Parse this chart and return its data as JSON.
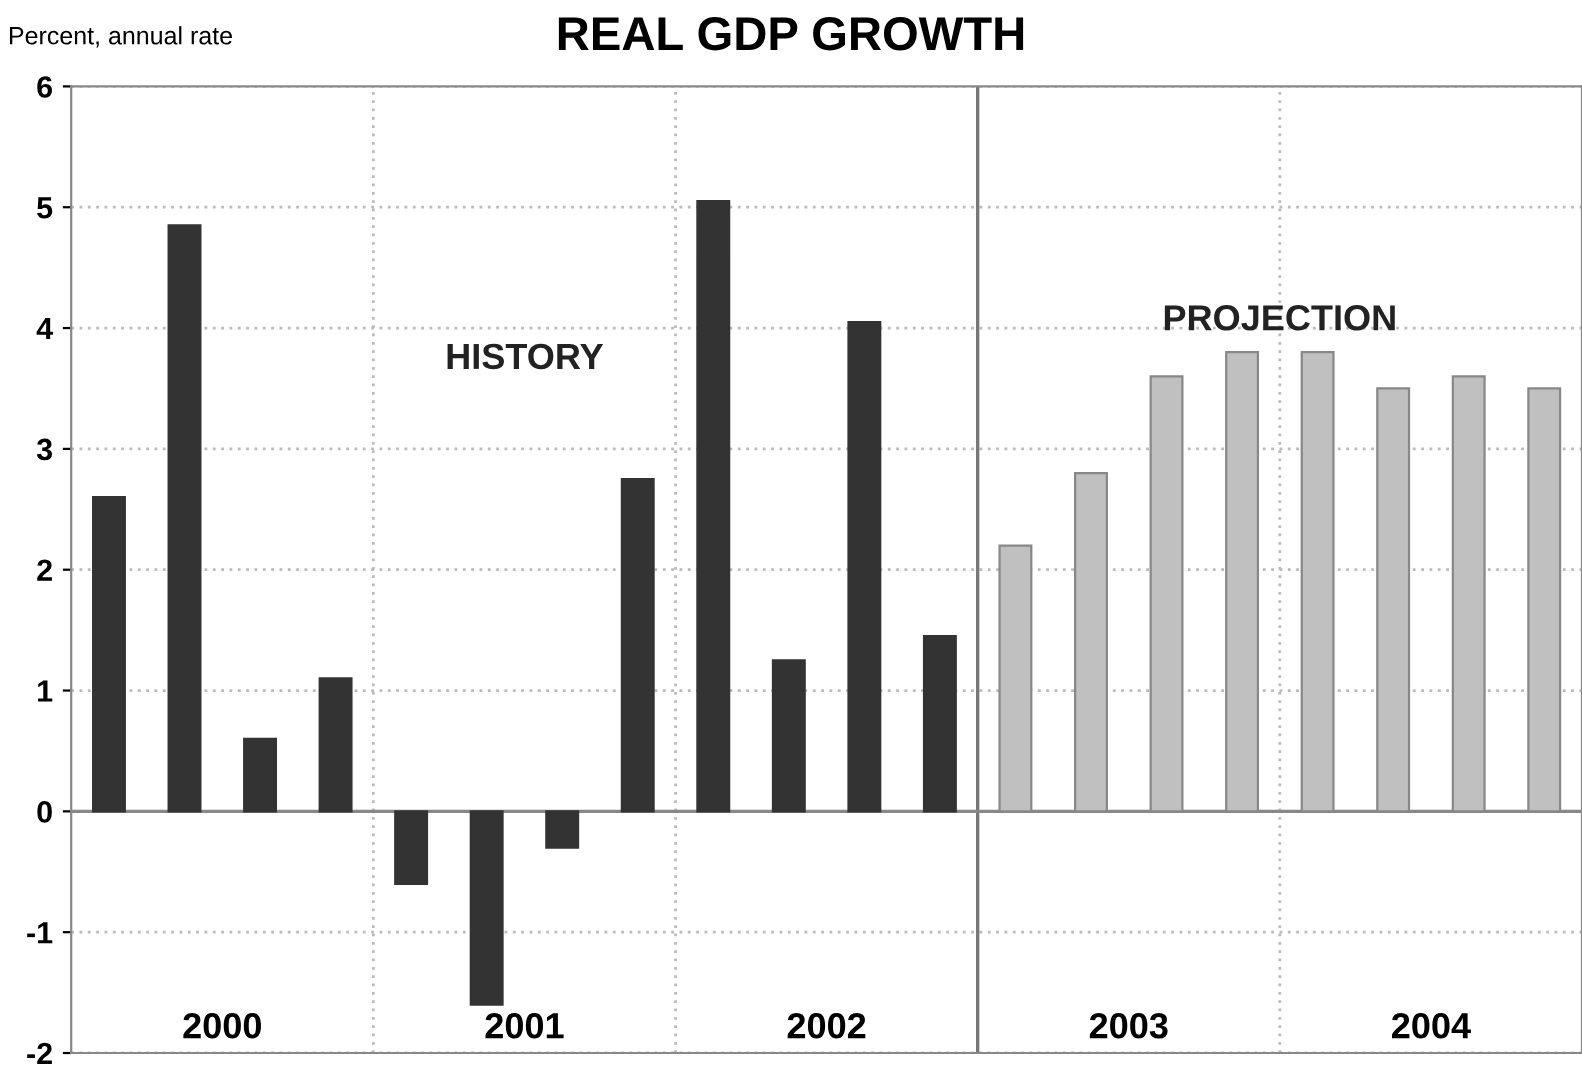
{
  "chart_data": {
    "type": "bar",
    "title": "REAL GDP GROWTH",
    "ylabel": "Percent, annual rate",
    "categories": [
      null,
      null,
      null,
      null,
      null,
      null,
      null,
      null,
      null,
      null,
      null,
      null,
      null,
      null,
      null,
      null,
      null,
      null,
      null,
      null
    ],
    "series": [
      {
        "name": "HISTORY",
        "color": "#333333",
        "values": [
          2.6,
          4.85,
          0.6,
          1.1,
          -0.6,
          -1.6,
          -0.3,
          2.75,
          5.05,
          1.25,
          4.05,
          1.45,
          null,
          null,
          null,
          null,
          null,
          null,
          null,
          null
        ]
      },
      {
        "name": "PROJECTION",
        "color": "#c0c0c0",
        "values": [
          null,
          null,
          null,
          null,
          null,
          null,
          null,
          null,
          null,
          null,
          null,
          null,
          2.2,
          2.8,
          3.6,
          3.8,
          3.8,
          3.5,
          3.6,
          3.5
        ]
      }
    ],
    "annotations": [
      "2000",
      "2001",
      "2002",
      "2003",
      "2004"
    ],
    "ylim": [
      -2,
      6
    ],
    "yticks": [
      -2,
      -1,
      0,
      1,
      2,
      3,
      4,
      5,
      6
    ],
    "grid": true,
    "legend": false
  }
}
